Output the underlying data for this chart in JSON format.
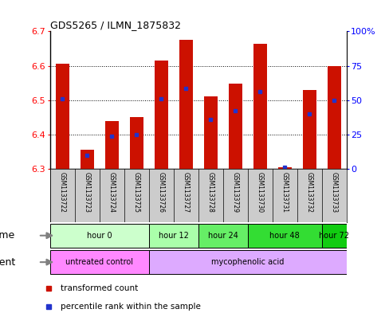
{
  "title": "GDS5265 / ILMN_1875832",
  "samples": [
    "GSM1133722",
    "GSM1133723",
    "GSM1133724",
    "GSM1133725",
    "GSM1133726",
    "GSM1133727",
    "GSM1133728",
    "GSM1133729",
    "GSM1133730",
    "GSM1133731",
    "GSM1133732",
    "GSM1133733"
  ],
  "bar_tops": [
    6.605,
    6.355,
    6.44,
    6.45,
    6.615,
    6.675,
    6.51,
    6.548,
    6.663,
    6.305,
    6.53,
    6.6
  ],
  "bar_base": 6.3,
  "blue_vals": [
    6.505,
    6.34,
    6.395,
    6.4,
    6.505,
    6.535,
    6.443,
    6.47,
    6.525,
    6.305,
    6.46,
    6.5
  ],
  "ylim": [
    6.3,
    6.7
  ],
  "yticks_left": [
    6.3,
    6.4,
    6.5,
    6.6,
    6.7
  ],
  "yticks_right": [
    0,
    25,
    50,
    75,
    100
  ],
  "bar_color": "#cc1100",
  "blue_color": "#2233cc",
  "time_groups": [
    {
      "label": "hour 0",
      "start": 0,
      "end": 4,
      "color": "#ccffcc"
    },
    {
      "label": "hour 12",
      "start": 4,
      "end": 6,
      "color": "#aaffaa"
    },
    {
      "label": "hour 24",
      "start": 6,
      "end": 8,
      "color": "#66ee66"
    },
    {
      "label": "hour 48",
      "start": 8,
      "end": 11,
      "color": "#33dd33"
    },
    {
      "label": "hour 72",
      "start": 11,
      "end": 12,
      "color": "#11cc11"
    }
  ],
  "agent_groups": [
    {
      "label": "untreated control",
      "start": 0,
      "end": 4,
      "color": "#ff88ff"
    },
    {
      "label": "mycophenolic acid",
      "start": 4,
      "end": 12,
      "color": "#ddaaff"
    }
  ],
  "legend_bar_label": "transformed count",
  "legend_blue_label": "percentile rank within the sample",
  "time_label": "time",
  "agent_label": "agent",
  "bar_width": 0.55,
  "sample_name_color": "#cccccc",
  "figure_width": 4.83,
  "figure_height": 3.93,
  "dpi": 100
}
